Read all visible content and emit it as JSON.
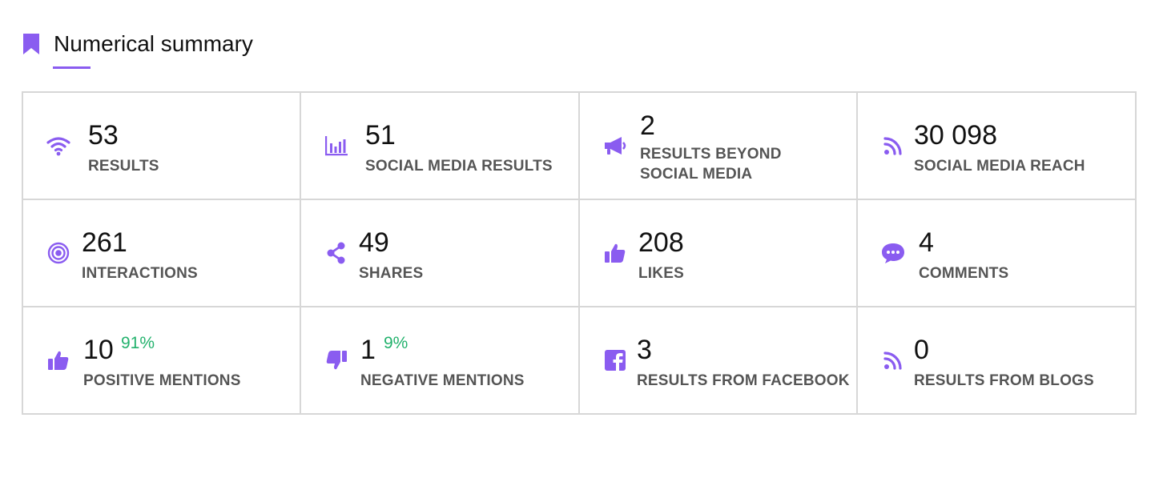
{
  "section": {
    "title": "Numerical summary",
    "icon": "bookmark-icon",
    "accent_color": "#8a5cf0"
  },
  "metrics": [
    {
      "icon": "wifi-icon",
      "value": "53",
      "label": "RESULTS"
    },
    {
      "icon": "bar-chart-icon",
      "value": "51",
      "label": "SOCIAL MEDIA RESULTS"
    },
    {
      "icon": "megaphone-icon",
      "value": "2",
      "label": "RESULTS BEYOND SOCIAL MEDIA"
    },
    {
      "icon": "rss-icon",
      "value": "30 098",
      "label": "SOCIAL MEDIA REACH"
    },
    {
      "icon": "target-icon",
      "value": "261",
      "label": "INTERACTIONS"
    },
    {
      "icon": "share-icon",
      "value": "49",
      "label": "SHARES"
    },
    {
      "icon": "thumbs-up-icon",
      "value": "208",
      "label": "LIKES"
    },
    {
      "icon": "comment-icon",
      "value": "4",
      "label": "COMMENTS"
    },
    {
      "icon": "thumbs-up-icon",
      "value": "10",
      "label": "POSITIVE MENTIONS",
      "percent": "91%"
    },
    {
      "icon": "thumbs-down-icon",
      "value": "1",
      "label": "NEGATIVE MENTIONS",
      "percent": "9%"
    },
    {
      "icon": "facebook-icon",
      "value": "3",
      "label": "RESULTS FROM FACEBOOK"
    },
    {
      "icon": "rss-icon",
      "value": "0",
      "label": "RESULTS FROM BLOGS"
    }
  ],
  "colors": {
    "icon": "#8a5cf0",
    "percent": "#23b26d",
    "label": "#555555",
    "border": "#d7d7d7"
  }
}
